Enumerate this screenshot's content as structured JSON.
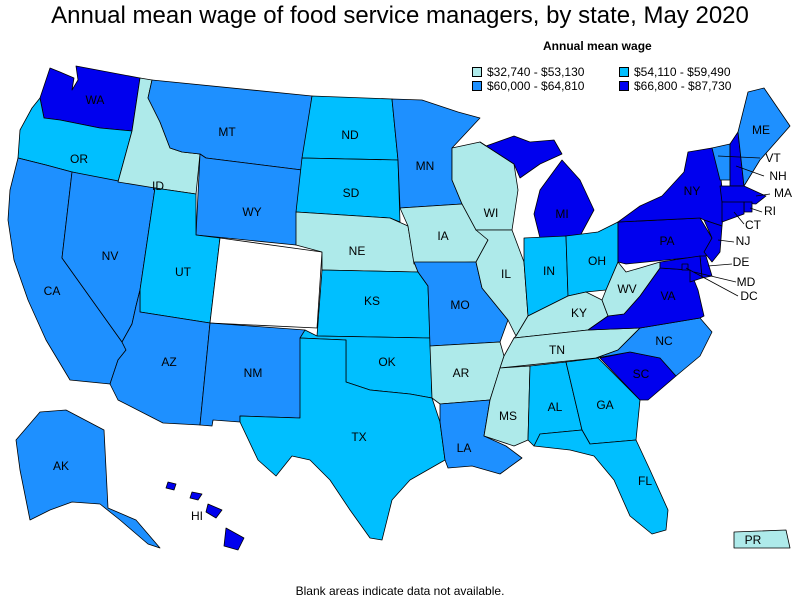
{
  "title": "Annual mean wage of food service managers, by state, May 2020",
  "legend": {
    "title": "Annual mean wage",
    "items": [
      {
        "label": "$32,740 - $53,130",
        "color": "#aeeaea"
      },
      {
        "label": "$54,110 - $59,490",
        "color": "#00bfff"
      },
      {
        "label": "$60,000 - $64,810",
        "color": "#1e90ff"
      },
      {
        "label": "$66,800 - $87,730",
        "color": "#0000ee"
      }
    ]
  },
  "colors": {
    "c1": "#aeeaea",
    "c2": "#00bfff",
    "c3": "#1e90ff",
    "c4": "#0000ee",
    "na": "#ffffff"
  },
  "states": {
    "WA": {
      "label": "WA",
      "bin": "c4"
    },
    "OR": {
      "label": "OR",
      "bin": "c2"
    },
    "CA": {
      "label": "CA",
      "bin": "c3"
    },
    "NV": {
      "label": "NV",
      "bin": "c3"
    },
    "ID": {
      "label": "ID",
      "bin": "c1"
    },
    "MT": {
      "label": "MT",
      "bin": "c3"
    },
    "WY": {
      "label": "WY",
      "bin": "c3"
    },
    "UT": {
      "label": "UT",
      "bin": "c2"
    },
    "AZ": {
      "label": "AZ",
      "bin": "c3"
    },
    "CO": {
      "label": "",
      "bin": "na"
    },
    "NM": {
      "label": "NM",
      "bin": "c3"
    },
    "ND": {
      "label": "ND",
      "bin": "c2"
    },
    "SD": {
      "label": "SD",
      "bin": "c2"
    },
    "NE": {
      "label": "NE",
      "bin": "c1"
    },
    "KS": {
      "label": "KS",
      "bin": "c2"
    },
    "OK": {
      "label": "OK",
      "bin": "c2"
    },
    "TX": {
      "label": "TX",
      "bin": "c2"
    },
    "MN": {
      "label": "MN",
      "bin": "c3"
    },
    "IA": {
      "label": "IA",
      "bin": "c1"
    },
    "MO": {
      "label": "MO",
      "bin": "c3"
    },
    "AR": {
      "label": "AR",
      "bin": "c1"
    },
    "LA": {
      "label": "LA",
      "bin": "c3"
    },
    "WI": {
      "label": "WI",
      "bin": "c1"
    },
    "IL": {
      "label": "IL",
      "bin": "c1"
    },
    "MI": {
      "label": "MI",
      "bin": "c4"
    },
    "IN": {
      "label": "IN",
      "bin": "c2"
    },
    "OH": {
      "label": "OH",
      "bin": "c2"
    },
    "KY": {
      "label": "KY",
      "bin": "c1"
    },
    "TN": {
      "label": "TN",
      "bin": "c1"
    },
    "MS": {
      "label": "MS",
      "bin": "c1"
    },
    "AL": {
      "label": "AL",
      "bin": "c2"
    },
    "GA": {
      "label": "GA",
      "bin": "c2"
    },
    "FL": {
      "label": "FL",
      "bin": "c2"
    },
    "SC": {
      "label": "SC",
      "bin": "c4"
    },
    "NC": {
      "label": "NC",
      "bin": "c3"
    },
    "VA": {
      "label": "VA",
      "bin": "c4"
    },
    "WV": {
      "label": "WV",
      "bin": "c1"
    },
    "PA": {
      "label": "PA",
      "bin": "c4"
    },
    "NY": {
      "label": "NY",
      "bin": "c4"
    },
    "VT": {
      "label": "VT",
      "bin": "c3"
    },
    "NH": {
      "label": "NH",
      "bin": "c4"
    },
    "ME": {
      "label": "ME",
      "bin": "c3"
    },
    "MA": {
      "label": "MA",
      "bin": "c4"
    },
    "RI": {
      "label": "RI",
      "bin": "c4"
    },
    "CT": {
      "label": "CT",
      "bin": "c4"
    },
    "NJ": {
      "label": "NJ",
      "bin": "c4"
    },
    "DE": {
      "label": "DE",
      "bin": "c4"
    },
    "MD": {
      "label": "MD",
      "bin": "c4"
    },
    "DC": {
      "label": "DC",
      "bin": "c4"
    },
    "AK": {
      "label": "AK",
      "bin": "c3"
    },
    "HI": {
      "label": "HI",
      "bin": "c4"
    },
    "PR": {
      "label": "PR",
      "bin": "c1"
    }
  },
  "footnote": "Blank areas indicate data not available."
}
